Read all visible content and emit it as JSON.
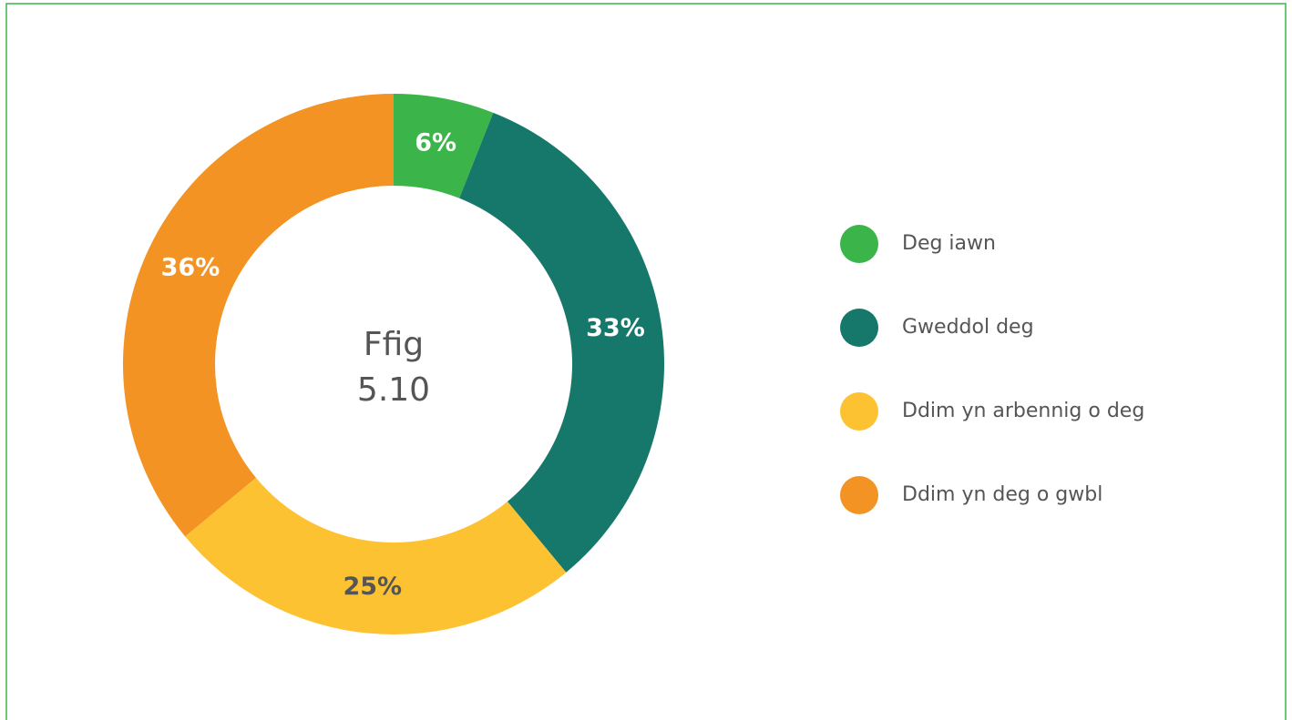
{
  "chart_data": {
    "type": "donut",
    "center_label": [
      "Ffig",
      "5.10"
    ],
    "categories": [
      "Deg iawn",
      "Gweddol deg",
      "Ddim yn arbennig o deg",
      "Ddim yn deg o gwbl"
    ],
    "values": [
      6,
      33,
      25,
      36
    ],
    "value_labels": [
      "6%",
      "33%",
      "25%",
      "36%"
    ],
    "colors": [
      "#3bb54a",
      "#16786a",
      "#fcc232",
      "#f39323"
    ],
    "legend": "right"
  }
}
